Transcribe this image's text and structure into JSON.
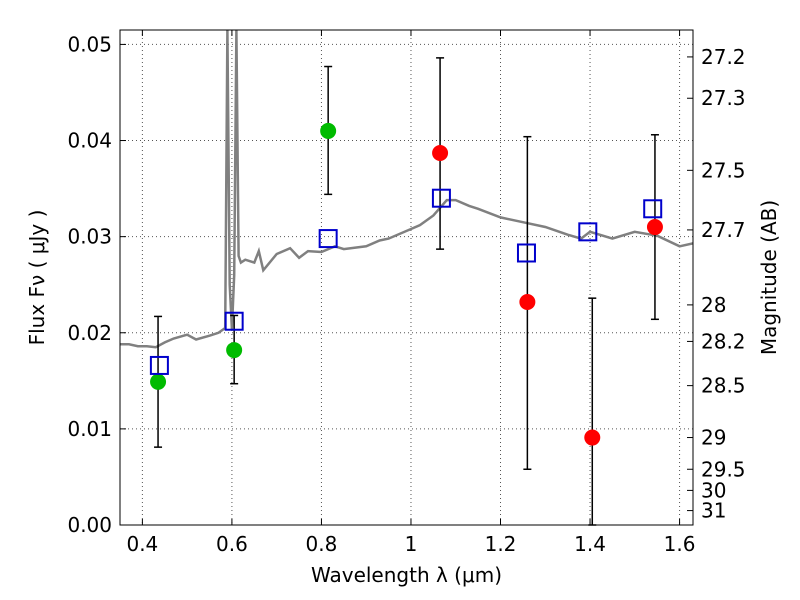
{
  "chart_data": {
    "type": "scatter",
    "xlabel": "Wavelength  λ (μm)",
    "ylabel": "Flux  Fν  ( μJy )",
    "y2label": "Magnitude (AB)",
    "xlim": [
      0.35,
      1.63
    ],
    "ylim": [
      0.0,
      0.0515
    ],
    "grid": true,
    "x_ticks": [
      0.4,
      0.6,
      0.8,
      1.0,
      1.2,
      1.4,
      1.6
    ],
    "x_tick_labels": [
      "0.4",
      "0.6",
      "0.8",
      "1",
      "1.2",
      "1.4",
      "1.6"
    ],
    "y_ticks": [
      0.0,
      0.01,
      0.02,
      0.03,
      0.04,
      0.05
    ],
    "y_tick_labels": [
      "0.00",
      "0.01",
      "0.02",
      "0.03",
      "0.04",
      "0.05"
    ],
    "y2_ticks": [
      {
        "label": "27.2",
        "flux": 0.0487
      },
      {
        "label": "27.3",
        "flux": 0.0444
      },
      {
        "label": "27.5",
        "flux": 0.0369
      },
      {
        "label": "27.7",
        "flux": 0.0307
      },
      {
        "label": "28",
        "flux": 0.0229
      },
      {
        "label": "28.2",
        "flux": 0.0191
      },
      {
        "label": "28.5",
        "flux": 0.0145
      },
      {
        "label": "29",
        "flux": 0.0091
      },
      {
        "label": "29.5",
        "flux": 0.0058
      },
      {
        "label": "30",
        "flux": 0.0036
      },
      {
        "label": "31",
        "flux": 0.0015
      }
    ],
    "colors": {
      "model": "#808080",
      "green": "#00bb00",
      "red": "#ff0000",
      "box": "#0000cc",
      "errorbar": "#000000",
      "grid": "#555555"
    },
    "series": [
      {
        "kind": "line",
        "x": [
          0.35,
          0.37,
          0.39,
          0.41,
          0.43,
          0.45,
          0.47,
          0.5,
          0.52,
          0.55,
          0.57,
          0.585,
          0.59,
          0.595,
          0.6,
          0.605,
          0.61,
          0.615,
          0.62,
          0.63,
          0.65,
          0.66,
          0.67,
          0.7,
          0.73,
          0.75,
          0.77,
          0.8,
          0.83,
          0.85,
          0.9,
          0.93,
          0.95,
          1.0,
          1.02,
          1.05,
          1.08,
          1.1,
          1.13,
          1.15,
          1.2,
          1.25,
          1.3,
          1.35,
          1.38,
          1.4,
          1.45,
          1.5,
          1.55,
          1.6,
          1.63
        ],
        "y": [
          0.0188,
          0.0188,
          0.0186,
          0.0186,
          0.0185,
          0.019,
          0.0194,
          0.0198,
          0.0193,
          0.0197,
          0.02,
          0.0205,
          0.0515,
          0.025,
          0.0204,
          0.026,
          0.0515,
          0.028,
          0.0273,
          0.0276,
          0.0273,
          0.0285,
          0.0265,
          0.0282,
          0.0288,
          0.0278,
          0.0285,
          0.0284,
          0.029,
          0.0287,
          0.029,
          0.0296,
          0.0298,
          0.0308,
          0.0312,
          0.0322,
          0.0338,
          0.0338,
          0.0332,
          0.0329,
          0.032,
          0.0315,
          0.031,
          0.0302,
          0.0298,
          0.0305,
          0.0298,
          0.0305,
          0.0301,
          0.029,
          0.0293
        ]
      },
      {
        "kind": "points",
        "marker": "circle-green",
        "x": [
          0.435,
          0.605,
          0.815
        ],
        "y": [
          0.0149,
          0.0182,
          0.041
        ],
        "yerr_low": [
          0.0081,
          0.0147,
          0.0344
        ],
        "yerr_high": [
          0.0217,
          0.0218,
          0.0477
        ]
      },
      {
        "kind": "points",
        "marker": "circle-red",
        "x": [
          1.065,
          1.26,
          1.405,
          1.545
        ],
        "y": [
          0.0387,
          0.0232,
          0.0091,
          0.031
        ],
        "yerr_low": [
          0.0287,
          0.0058,
          0.0,
          0.0214
        ],
        "yerr_high": [
          0.0486,
          0.0404,
          0.0236,
          0.0406
        ]
      },
      {
        "kind": "points",
        "marker": "square-blue",
        "x": [
          0.438,
          0.605,
          0.815,
          1.068,
          1.258,
          1.395,
          1.54
        ],
        "y": [
          0.0166,
          0.0212,
          0.0298,
          0.034,
          0.0283,
          0.0305,
          0.0329
        ]
      }
    ]
  }
}
